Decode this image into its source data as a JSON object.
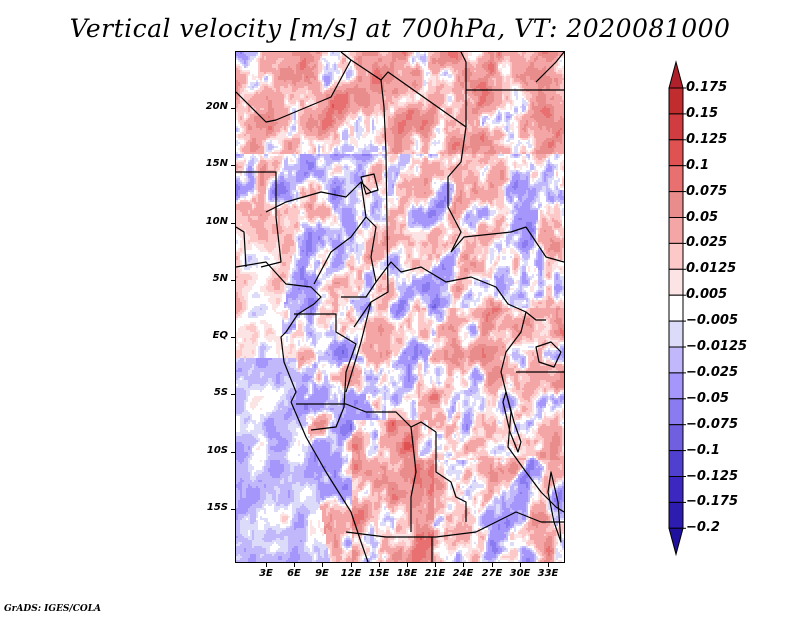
{
  "title": "Vertical velocity [m/s] at 700hPa, VT: 2020081000",
  "credit": "GrADS: IGES/COLA",
  "chart_data": {
    "type": "heatmap",
    "title": "Vertical velocity [m/s] at 700hPa, VT: 2020081000",
    "variable": "Vertical velocity",
    "units": "m/s",
    "level": "700hPa",
    "valid_time": "2020081000",
    "projection": "lat-lon",
    "lon_range": [
      0,
      35
    ],
    "lat_range": [
      -20,
      25
    ],
    "x_ticks": [
      "3E",
      "6E",
      "9E",
      "12E",
      "15E",
      "18E",
      "21E",
      "24E",
      "27E",
      "30E",
      "33E"
    ],
    "x_tick_values": [
      3,
      6,
      9,
      12,
      15,
      18,
      21,
      24,
      27,
      30,
      33
    ],
    "y_ticks": [
      "20N",
      "15N",
      "10N",
      "5N",
      "EQ",
      "5S",
      "10S",
      "15S"
    ],
    "y_tick_values": [
      20,
      15,
      10,
      5,
      0,
      -5,
      -10,
      -15
    ],
    "colorbar": {
      "labels": [
        "0.175",
        "0.15",
        "0.125",
        "0.1",
        "0.075",
        "0.05",
        "0.025",
        "0.0125",
        "0.005",
        "-0.005",
        "-0.0125",
        "-0.025",
        "-0.05",
        "-0.075",
        "-0.1",
        "-0.125",
        "-0.175",
        "-0.2"
      ],
      "colors": [
        "#b0202a",
        "#c12c2f",
        "#d03c3f",
        "#e05252",
        "#e87070",
        "#e88c8c",
        "#f4a6a6",
        "#fcc8c8",
        "#fde4e4",
        "#ffffff",
        "#dcdcfa",
        "#c0b8fa",
        "#a496fa",
        "#8a7cf0",
        "#7060e0",
        "#5040d0",
        "#3c28c0",
        "#2c1cb0",
        "#20109e"
      ],
      "extend": "both"
    },
    "description": "Gridded field of 700hPa vertical velocity over Central/Southern Africa with country borders; red = positive, blue = negative."
  }
}
